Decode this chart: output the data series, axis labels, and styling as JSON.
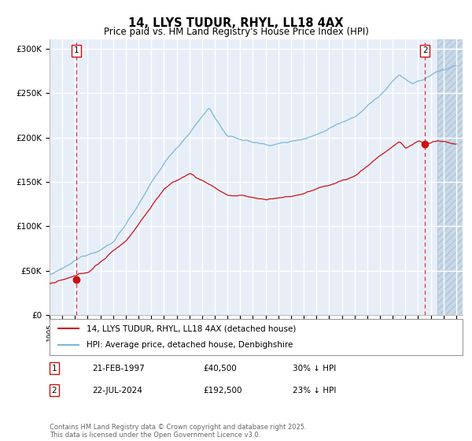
{
  "title": "14, LLYS TUDUR, RHYL, LL18 4AX",
  "subtitle": "Price paid vs. HM Land Registry's House Price Index (HPI)",
  "ylim": [
    0,
    310000
  ],
  "xlim_start": 1995.0,
  "xlim_end": 2027.5,
  "yticks": [
    0,
    50000,
    100000,
    150000,
    200000,
    250000,
    300000
  ],
  "ytick_labels": [
    "£0",
    "£50K",
    "£100K",
    "£150K",
    "£200K",
    "£250K",
    "£300K"
  ],
  "background_color": "#e8eef8",
  "grid_color": "#ffffff",
  "sale1_date": 1997.13,
  "sale1_price": 40500,
  "sale2_date": 2024.55,
  "sale2_price": 192500,
  "legend_line1": "14, LLYS TUDUR, RHYL, LL18 4AX (detached house)",
  "legend_line2": "HPI: Average price, detached house, Denbighshire",
  "table_row1": [
    "1",
    "21-FEB-1997",
    "£40,500",
    "30% ↓ HPI"
  ],
  "table_row2": [
    "2",
    "22-JUL-2024",
    "£192,500",
    "23% ↓ HPI"
  ],
  "copyright_text": "Contains HM Land Registry data © Crown copyright and database right 2025.\nThis data is licensed under the Open Government Licence v3.0.",
  "hpi_color": "#7ab8d8",
  "price_color": "#cc1111",
  "hatching_color": "#c8d8e8",
  "future_start": 2025.5
}
